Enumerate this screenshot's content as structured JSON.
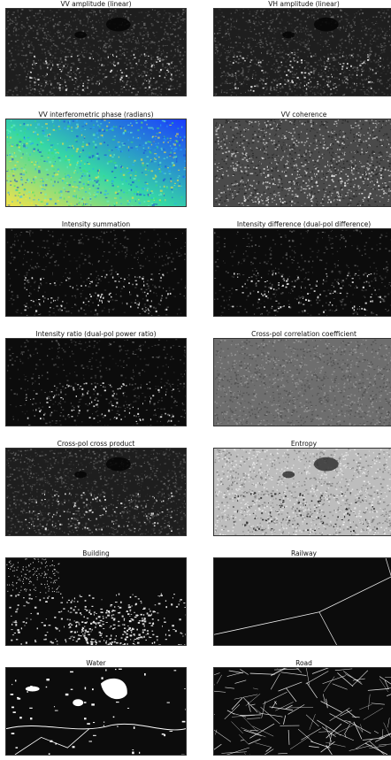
{
  "panels": [
    {
      "id": "vv-amplitude",
      "title": "VV amplitude (linear)",
      "texture": "amplitude"
    },
    {
      "id": "vh-amplitude",
      "title": "VH amplitude (linear)",
      "texture": "amplitude"
    },
    {
      "id": "vv-phase",
      "title": "VV interferometric phase (radians)",
      "texture": "phase"
    },
    {
      "id": "vv-coherence",
      "title": "VV coherence",
      "texture": "coherence"
    },
    {
      "id": "intensity-summation",
      "title": "Intensity summation",
      "texture": "intensity"
    },
    {
      "id": "intensity-difference",
      "title": "Intensity difference (dual-pol difference)",
      "texture": "intensity"
    },
    {
      "id": "intensity-ratio",
      "title": "Intensity ratio (dual-pol power ratio)",
      "texture": "intensity"
    },
    {
      "id": "cross-pol-correlation",
      "title": "Cross-pol correlation coefficient",
      "texture": "correlation"
    },
    {
      "id": "cross-pol-product",
      "title": "Cross-pol cross product",
      "texture": "amplitude"
    },
    {
      "id": "entropy",
      "title": "Entropy",
      "texture": "entropy"
    },
    {
      "id": "building",
      "title": "Building",
      "texture": "building"
    },
    {
      "id": "railway",
      "title": "Railway",
      "texture": "railway"
    },
    {
      "id": "water",
      "title": "Water",
      "texture": "water"
    },
    {
      "id": "road",
      "title": "Road",
      "texture": "road"
    }
  ],
  "colors": {
    "phase_low": "#1a3cff",
    "phase_mid": "#35d7a6",
    "phase_high": "#f4e44a",
    "background": "#000000"
  }
}
